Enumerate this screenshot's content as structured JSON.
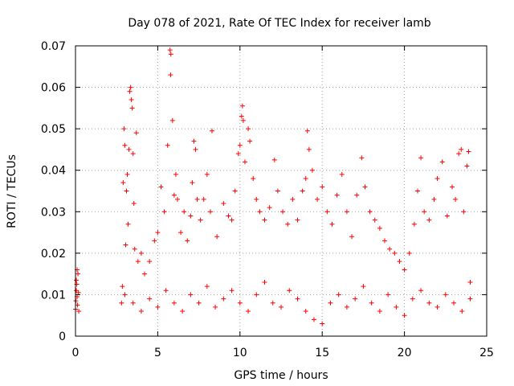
{
  "chart_data": {
    "type": "scatter",
    "title": "Day 078 of 2021, Rate Of TEC Index for receiver lamb",
    "xlabel": "GPS time / hours",
    "ylabel": "ROTI / TECUs",
    "xlim": [
      0,
      25
    ],
    "ylim": [
      0,
      0.07
    ],
    "xticks": [
      "0",
      "5",
      "10",
      "15",
      "20",
      "25"
    ],
    "yticks": [
      "0",
      "0.01",
      "0.02",
      "0.03",
      "0.04",
      "0.05",
      "0.06",
      "0.07"
    ],
    "marker": "+",
    "color": "#ff0000",
    "grid": true,
    "series": [
      {
        "points": [
          [
            0.0,
            0.0065
          ],
          [
            0.02,
            0.0085
          ],
          [
            0.05,
            0.011
          ],
          [
            0.08,
            0.0125
          ],
          [
            0.1,
            0.0095
          ],
          [
            0.12,
            0.0075
          ],
          [
            0.15,
            0.015
          ],
          [
            0.18,
            0.0105
          ],
          [
            0.2,
            0.006
          ],
          [
            0.05,
            0.0135
          ],
          [
            0.1,
            0.016
          ],
          [
            2.8,
            0.008
          ],
          [
            2.85,
            0.012
          ],
          [
            2.9,
            0.037
          ],
          [
            2.95,
            0.05
          ],
          [
            3.0,
            0.046
          ],
          [
            3.05,
            0.022
          ],
          [
            3.1,
            0.035
          ],
          [
            3.15,
            0.039
          ],
          [
            3.2,
            0.027
          ],
          [
            3.25,
            0.045
          ],
          [
            3.3,
            0.059
          ],
          [
            3.35,
            0.06
          ],
          [
            3.4,
            0.057
          ],
          [
            3.45,
            0.055
          ],
          [
            3.5,
            0.044
          ],
          [
            3.55,
            0.032
          ],
          [
            3.6,
            0.021
          ],
          [
            3.7,
            0.049
          ],
          [
            3.8,
            0.018
          ],
          [
            4.0,
            0.02
          ],
          [
            4.2,
            0.015
          ],
          [
            4.5,
            0.018
          ],
          [
            4.8,
            0.023
          ],
          [
            5.0,
            0.025
          ],
          [
            5.2,
            0.036
          ],
          [
            5.4,
            0.03
          ],
          [
            5.6,
            0.046
          ],
          [
            5.75,
            0.069
          ],
          [
            5.8,
            0.068
          ],
          [
            5.78,
            0.063
          ],
          [
            5.9,
            0.052
          ],
          [
            6.0,
            0.034
          ],
          [
            6.1,
            0.039
          ],
          [
            6.2,
            0.033
          ],
          [
            6.4,
            0.025
          ],
          [
            6.6,
            0.03
          ],
          [
            6.8,
            0.023
          ],
          [
            7.0,
            0.029
          ],
          [
            7.1,
            0.037
          ],
          [
            7.2,
            0.047
          ],
          [
            7.3,
            0.045
          ],
          [
            7.4,
            0.033
          ],
          [
            7.6,
            0.028
          ],
          [
            7.8,
            0.033
          ],
          [
            8.0,
            0.039
          ],
          [
            8.2,
            0.03
          ],
          [
            8.3,
            0.0495
          ],
          [
            8.6,
            0.024
          ],
          [
            9.0,
            0.032
          ],
          [
            9.3,
            0.029
          ],
          [
            9.5,
            0.028
          ],
          [
            9.7,
            0.035
          ],
          [
            9.9,
            0.044
          ],
          [
            10.0,
            0.046
          ],
          [
            10.1,
            0.053
          ],
          [
            10.15,
            0.0555
          ],
          [
            10.2,
            0.052
          ],
          [
            10.3,
            0.042
          ],
          [
            10.5,
            0.05
          ],
          [
            10.6,
            0.047
          ],
          [
            10.8,
            0.038
          ],
          [
            11.0,
            0.033
          ],
          [
            11.2,
            0.03
          ],
          [
            11.5,
            0.028
          ],
          [
            11.8,
            0.031
          ],
          [
            12.1,
            0.0425
          ],
          [
            12.3,
            0.035
          ],
          [
            12.6,
            0.03
          ],
          [
            12.9,
            0.027
          ],
          [
            13.2,
            0.033
          ],
          [
            13.5,
            0.028
          ],
          [
            13.8,
            0.035
          ],
          [
            14.0,
            0.038
          ],
          [
            14.1,
            0.0495
          ],
          [
            14.2,
            0.045
          ],
          [
            14.4,
            0.04
          ],
          [
            14.7,
            0.033
          ],
          [
            15.0,
            0.036
          ],
          [
            15.3,
            0.03
          ],
          [
            15.6,
            0.027
          ],
          [
            15.9,
            0.034
          ],
          [
            16.2,
            0.039
          ],
          [
            16.5,
            0.03
          ],
          [
            16.8,
            0.024
          ],
          [
            17.1,
            0.034
          ],
          [
            17.4,
            0.043
          ],
          [
            17.6,
            0.036
          ],
          [
            17.9,
            0.03
          ],
          [
            18.2,
            0.028
          ],
          [
            18.5,
            0.026
          ],
          [
            18.8,
            0.023
          ],
          [
            19.1,
            0.021
          ],
          [
            19.4,
            0.02
          ],
          [
            19.7,
            0.018
          ],
          [
            20.0,
            0.016
          ],
          [
            20.3,
            0.02
          ],
          [
            20.6,
            0.027
          ],
          [
            20.8,
            0.035
          ],
          [
            21.0,
            0.043
          ],
          [
            21.2,
            0.03
          ],
          [
            21.5,
            0.028
          ],
          [
            21.8,
            0.033
          ],
          [
            22.0,
            0.038
          ],
          [
            22.3,
            0.042
          ],
          [
            22.6,
            0.029
          ],
          [
            22.9,
            0.036
          ],
          [
            23.1,
            0.033
          ],
          [
            23.3,
            0.044
          ],
          [
            23.45,
            0.045
          ],
          [
            23.6,
            0.03
          ],
          [
            23.8,
            0.041
          ],
          [
            23.9,
            0.0445
          ],
          [
            24.0,
            0.013
          ],
          [
            3.0,
            0.01
          ],
          [
            3.5,
            0.008
          ],
          [
            4.0,
            0.006
          ],
          [
            4.5,
            0.009
          ],
          [
            5.0,
            0.007
          ],
          [
            5.5,
            0.011
          ],
          [
            6.0,
            0.008
          ],
          [
            6.5,
            0.006
          ],
          [
            7.0,
            0.01
          ],
          [
            7.5,
            0.008
          ],
          [
            8.0,
            0.012
          ],
          [
            8.5,
            0.007
          ],
          [
            9.0,
            0.009
          ],
          [
            9.5,
            0.011
          ],
          [
            10.0,
            0.008
          ],
          [
            10.5,
            0.006
          ],
          [
            11.0,
            0.01
          ],
          [
            11.5,
            0.013
          ],
          [
            12.0,
            0.008
          ],
          [
            12.5,
            0.007
          ],
          [
            13.0,
            0.011
          ],
          [
            13.5,
            0.009
          ],
          [
            14.0,
            0.006
          ],
          [
            14.5,
            0.004
          ],
          [
            15.0,
            0.003
          ],
          [
            15.5,
            0.008
          ],
          [
            16.0,
            0.01
          ],
          [
            16.5,
            0.007
          ],
          [
            17.0,
            0.009
          ],
          [
            17.5,
            0.012
          ],
          [
            18.0,
            0.008
          ],
          [
            18.5,
            0.006
          ],
          [
            19.0,
            0.01
          ],
          [
            19.5,
            0.007
          ],
          [
            20.0,
            0.005
          ],
          [
            20.5,
            0.009
          ],
          [
            21.0,
            0.011
          ],
          [
            21.5,
            0.008
          ],
          [
            22.0,
            0.007
          ],
          [
            22.5,
            0.01
          ],
          [
            23.0,
            0.008
          ],
          [
            23.5,
            0.006
          ],
          [
            24.0,
            0.009
          ]
        ]
      }
    ]
  }
}
